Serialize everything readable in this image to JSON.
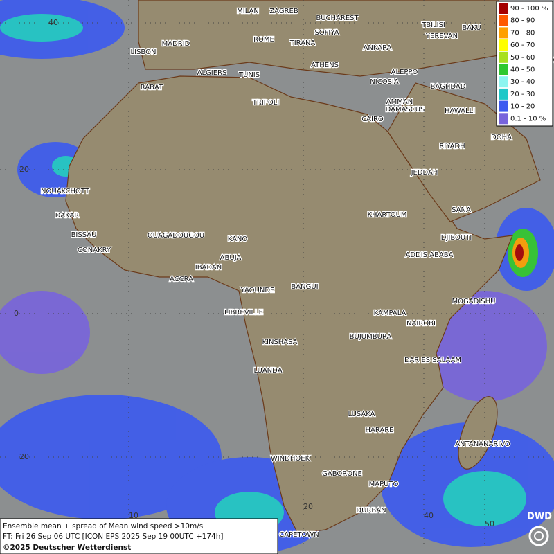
{
  "legend": [
    {
      "label": "90 - 100 %",
      "color": "#a50000"
    },
    {
      "label": "80 - 90",
      "color": "#ff5a00"
    },
    {
      "label": "70 - 80",
      "color": "#ffa000"
    },
    {
      "label": "60 - 70",
      "color": "#ffff00"
    },
    {
      "label": "50 - 60",
      "color": "#a8e01e"
    },
    {
      "label": "40 - 50",
      "color": "#2ec82e"
    },
    {
      "label": "30 - 40",
      "color": "#8cf5f0"
    },
    {
      "label": "20 - 30",
      "color": "#1ec8c8"
    },
    {
      "label": "10 - 20",
      "color": "#3c5af0"
    },
    {
      "label": "0.1 - 10 %",
      "color": "#7864dc"
    }
  ],
  "cities": [
    "MILAN",
    "ZAGREB",
    "BUCHAREST",
    "TBILISI",
    "BAKU",
    "YEREVAN",
    "TEHRA",
    "MADRID",
    "ROME",
    "SOFIYA",
    "ANKARA",
    "LISBON",
    "TIRANA",
    "ATHENS",
    "ALGIERS",
    "TUNIS",
    "ALEPPO",
    "NICOSIA",
    "BAGHDAD",
    "RABAT",
    "DAMASCUS",
    "AMMAN",
    "TRIPOLI",
    "CAIRO",
    "HAWALLI",
    "DOHA",
    "RIYADH",
    "JEDDAH",
    "NOUAKCHOTT",
    "SANA",
    "KHARTOUM",
    "DAKAR",
    "BISSAU",
    "DJIBOUTI",
    "OUAGADOUGOU",
    "KANO",
    "CONAKRY",
    "ADDIS ABABA",
    "ABUJA",
    "IBADAN",
    "ACCRA",
    "YAOUNDE",
    "BANGUI",
    "MOGADISHU",
    "LIBREVILLE",
    "KAMPALA",
    "NAIROBI",
    "KINSHASA",
    "BUJUMBURA",
    "DAR ES SALAAM",
    "LUANDA",
    "LUSAKA",
    "HARARE",
    "ANTANANARIVO",
    "WINDHOEK",
    "GABORONE",
    "MAPUTO",
    "DURBAN",
    "CAPETOWN"
  ],
  "grid_labels": [
    "40",
    "20",
    "0",
    "20",
    "10",
    "20",
    "40",
    "50"
  ],
  "footer": {
    "line1": "Ensemble mean + spread of Mean wind speed >10m/s",
    "line2": "FT: Fri 26 Sep 06 UTC [ICON EPS 2025 Sep 19 00UTC +174h]",
    "copyright": "©2025 Deutscher Wetterdienst"
  },
  "logo": "DWD"
}
